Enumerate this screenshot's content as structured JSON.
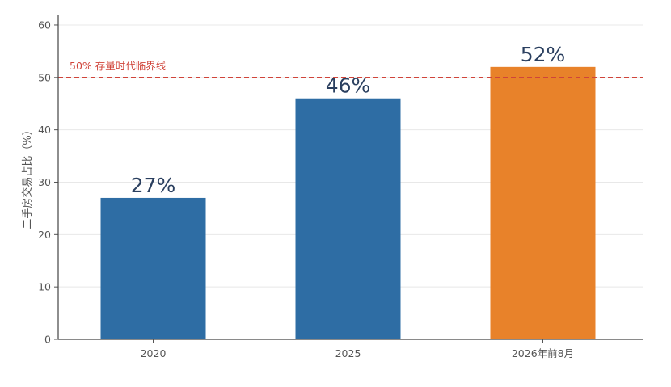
{
  "chart_data": {
    "type": "bar",
    "categories": [
      "2020",
      "2025",
      "2026年前8月"
    ],
    "values": [
      27,
      46,
      52
    ],
    "value_labels": [
      "27%",
      "46%",
      "52%"
    ],
    "bar_colors": [
      "#2e6da4",
      "#2e6da4",
      "#e8822a"
    ],
    "ylabel": "二手房交易占比（%）",
    "ylim": [
      0,
      62
    ],
    "yticks": [
      0,
      10,
      20,
      30,
      40,
      50,
      60
    ],
    "grid": true,
    "reference_line": {
      "value": 50,
      "label": "50% 存量时代临界线",
      "color": "#d0443a",
      "style": "dashed"
    }
  }
}
